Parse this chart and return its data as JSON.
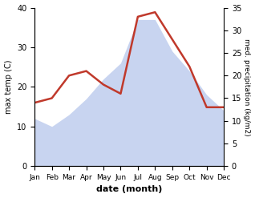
{
  "months": [
    "Jan",
    "Feb",
    "Mar",
    "Apr",
    "May",
    "Jun",
    "Jul",
    "Aug",
    "Sep",
    "Oct",
    "Nov",
    "Dec"
  ],
  "max_temp": [
    12,
    10,
    13,
    17,
    22,
    26,
    37,
    37,
    29,
    24,
    18,
    14
  ],
  "precipitation": [
    14,
    15,
    20,
    21,
    18,
    16,
    33,
    34,
    28,
    22,
    13,
    13
  ],
  "temp_color": "#c8d4f0",
  "precip_color": "#c0392b",
  "temp_ylim": [
    0,
    40
  ],
  "precip_ylim": [
    0,
    35
  ],
  "temp_yticks": [
    0,
    10,
    20,
    30,
    40
  ],
  "precip_yticks": [
    0,
    5,
    10,
    15,
    20,
    25,
    30,
    35
  ],
  "xlabel": "date (month)",
  "ylabel_left": "max temp (C)",
  "ylabel_right": "med. precipitation (kg/m2)",
  "bg_color": "#ffffff",
  "fill_alpha": 0.55,
  "line_width": 1.8
}
